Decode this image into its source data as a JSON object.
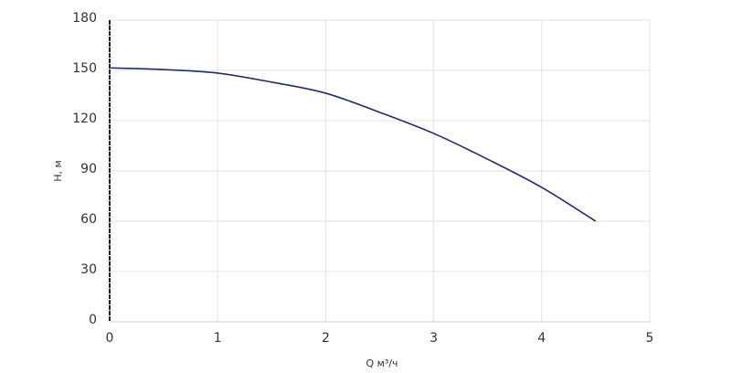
{
  "chart_data": {
    "type": "line",
    "x_label": "Q м³/ч",
    "y_label": "H, м",
    "x": [
      0,
      0.5,
      1,
      1.5,
      2,
      2.5,
      3,
      3.5,
      4,
      4.5
    ],
    "series": [
      {
        "name": "H",
        "color": "#1f2d6b",
        "values": [
          151.5,
          150.5,
          148.4,
          143,
          136.4,
          125,
          112.4,
          97,
          80.2,
          60
        ]
      }
    ],
    "xlim": [
      0,
      5
    ],
    "xticks": [
      0,
      1,
      2,
      3,
      4,
      5
    ],
    "ylim": [
      0,
      180
    ],
    "yticks": [
      0,
      30,
      60,
      90,
      120,
      150,
      180
    ],
    "grid": true
  }
}
